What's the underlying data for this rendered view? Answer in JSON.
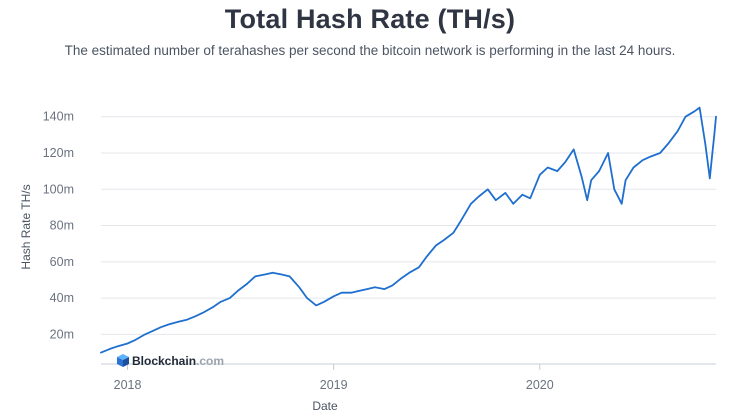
{
  "chart_data": {
    "type": "line",
    "title": "Total Hash Rate (TH/s)",
    "subtitle": "The estimated number of terahashes per second the bitcoin network is performing in the last 24 hours.",
    "xlabel": "Date",
    "ylabel": "Hash Rate TH/s",
    "xlim": [
      "2017-11-15",
      "2020-11-08"
    ],
    "ylim": [
      7000000,
      147000000
    ],
    "y_ticks": [
      {
        "value": 20000000,
        "label": "20m"
      },
      {
        "value": 40000000,
        "label": "40m"
      },
      {
        "value": 60000000,
        "label": "60m"
      },
      {
        "value": 80000000,
        "label": "80m"
      },
      {
        "value": 100000000,
        "label": "100m"
      },
      {
        "value": 120000000,
        "label": "120m"
      },
      {
        "value": 140000000,
        "label": "140m"
      }
    ],
    "x_ticks": [
      {
        "value": "2018-01-01",
        "label": "2018"
      },
      {
        "value": "2019-01-01",
        "label": "2019"
      },
      {
        "value": "2020-01-01",
        "label": "2020"
      }
    ],
    "grid": "horizontal",
    "line_color": "#1f6fce",
    "series": [
      {
        "name": "",
        "points": [
          [
            "2017-11-15",
            10000000
          ],
          [
            "2017-12-01",
            12000000
          ],
          [
            "2017-12-15",
            13500000
          ],
          [
            "2018-01-01",
            15000000
          ],
          [
            "2018-01-15",
            17000000
          ],
          [
            "2018-02-01",
            20000000
          ],
          [
            "2018-02-15",
            22000000
          ],
          [
            "2018-03-01",
            24000000
          ],
          [
            "2018-03-15",
            25500000
          ],
          [
            "2018-04-01",
            27000000
          ],
          [
            "2018-04-15",
            28000000
          ],
          [
            "2018-05-01",
            30000000
          ],
          [
            "2018-05-15",
            32000000
          ],
          [
            "2018-06-01",
            35000000
          ],
          [
            "2018-06-15",
            38000000
          ],
          [
            "2018-07-01",
            40000000
          ],
          [
            "2018-07-15",
            44000000
          ],
          [
            "2018-08-01",
            48000000
          ],
          [
            "2018-08-15",
            52000000
          ],
          [
            "2018-09-01",
            53000000
          ],
          [
            "2018-09-15",
            54000000
          ],
          [
            "2018-10-01",
            53000000
          ],
          [
            "2018-10-15",
            52000000
          ],
          [
            "2018-11-01",
            46000000
          ],
          [
            "2018-11-15",
            40000000
          ],
          [
            "2018-12-01",
            36000000
          ],
          [
            "2018-12-15",
            38000000
          ],
          [
            "2019-01-01",
            41000000
          ],
          [
            "2019-01-15",
            43000000
          ],
          [
            "2019-02-01",
            43000000
          ],
          [
            "2019-02-15",
            44000000
          ],
          [
            "2019-03-01",
            45000000
          ],
          [
            "2019-03-15",
            46000000
          ],
          [
            "2019-04-01",
            45000000
          ],
          [
            "2019-04-15",
            47000000
          ],
          [
            "2019-05-01",
            51000000
          ],
          [
            "2019-05-15",
            54000000
          ],
          [
            "2019-06-01",
            57000000
          ],
          [
            "2019-06-15",
            63000000
          ],
          [
            "2019-07-01",
            69000000
          ],
          [
            "2019-07-15",
            72000000
          ],
          [
            "2019-08-01",
            76000000
          ],
          [
            "2019-08-15",
            83000000
          ],
          [
            "2019-09-01",
            92000000
          ],
          [
            "2019-09-15",
            96000000
          ],
          [
            "2019-10-01",
            100000000
          ],
          [
            "2019-10-15",
            94000000
          ],
          [
            "2019-11-01",
            98000000
          ],
          [
            "2019-11-15",
            92000000
          ],
          [
            "2019-12-01",
            97000000
          ],
          [
            "2019-12-15",
            95000000
          ],
          [
            "2020-01-01",
            108000000
          ],
          [
            "2020-01-15",
            112000000
          ],
          [
            "2020-02-01",
            110000000
          ],
          [
            "2020-02-15",
            115000000
          ],
          [
            "2020-03-01",
            122000000
          ],
          [
            "2020-03-15",
            107000000
          ],
          [
            "2020-03-25",
            94000000
          ],
          [
            "2020-04-01",
            105000000
          ],
          [
            "2020-04-15",
            110000000
          ],
          [
            "2020-05-01",
            120000000
          ],
          [
            "2020-05-12",
            100000000
          ],
          [
            "2020-05-25",
            92000000
          ],
          [
            "2020-06-01",
            105000000
          ],
          [
            "2020-06-15",
            112000000
          ],
          [
            "2020-07-01",
            116000000
          ],
          [
            "2020-07-15",
            118000000
          ],
          [
            "2020-08-01",
            120000000
          ],
          [
            "2020-08-15",
            125000000
          ],
          [
            "2020-09-01",
            132000000
          ],
          [
            "2020-09-15",
            140000000
          ],
          [
            "2020-10-01",
            143000000
          ],
          [
            "2020-10-10",
            145000000
          ],
          [
            "2020-10-20",
            125000000
          ],
          [
            "2020-10-28",
            106000000
          ],
          [
            "2020-11-01",
            118000000
          ],
          [
            "2020-11-05",
            130000000
          ],
          [
            "2020-11-08",
            140000000
          ]
        ]
      }
    ]
  },
  "branding": {
    "name": "Blockchain",
    "tld": ".com"
  }
}
